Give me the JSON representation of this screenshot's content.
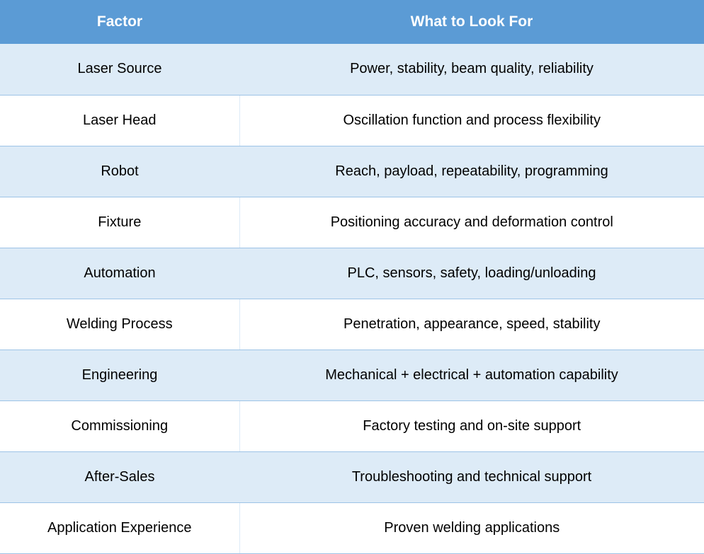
{
  "table": {
    "headers": {
      "factor": "Factor",
      "what": "What to Look For"
    },
    "rows": [
      {
        "factor": "Laser Source",
        "what": "Power, stability, beam quality, reliability"
      },
      {
        "factor": "Laser Head",
        "what": "Oscillation function and process flexibility"
      },
      {
        "factor": "Robot",
        "what": "Reach, payload, repeatability, programming"
      },
      {
        "factor": "Fixture",
        "what": "Positioning accuracy and deformation control"
      },
      {
        "factor": "Automation",
        "what": "PLC, sensors, safety, loading/unloading"
      },
      {
        "factor": "Welding Process",
        "what": "Penetration, appearance, speed, stability"
      },
      {
        "factor": "Engineering",
        "what": "Mechanical + electrical + automation capability"
      },
      {
        "factor": "Commissioning",
        "what": "Factory testing and on-site support"
      },
      {
        "factor": "After-Sales",
        "what": "Troubleshooting and technical support"
      },
      {
        "factor": "Application Experience",
        "what": "Proven welding applications"
      }
    ]
  },
  "colors": {
    "header_bg": "#5b9bd5",
    "header_text": "#ffffff",
    "band_bg": "#ddebf7",
    "row_border": "#9dc3e6"
  }
}
